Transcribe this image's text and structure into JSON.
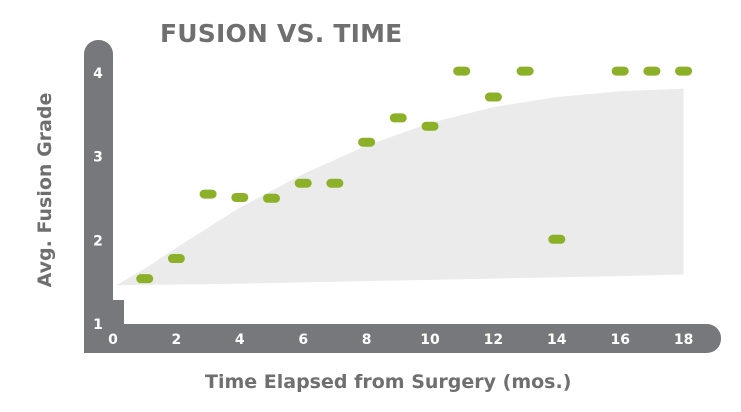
{
  "chart_data": {
    "type": "scatter",
    "title": "FUSION VS. TIME",
    "xlabel": "Time Elapsed from Surgery (mos.)",
    "ylabel": "Avg. Fusion Grade",
    "x_ticks": [
      0,
      2,
      4,
      6,
      8,
      10,
      12,
      14,
      16,
      18
    ],
    "y_ticks": [
      1,
      2,
      3,
      4
    ],
    "xlim": [
      0,
      18.5
    ],
    "ylim": [
      1,
      4
    ],
    "grid": false,
    "legend": "none",
    "colors": {
      "axis": "#77787b",
      "tick_label": "#ffffff",
      "point": "#8cb028",
      "band": "#ebebeb",
      "text": "#6f6f70"
    },
    "points": [
      {
        "x": 1,
        "y": 1.53
      },
      {
        "x": 2,
        "y": 1.77
      },
      {
        "x": 3,
        "y": 2.54
      },
      {
        "x": 4,
        "y": 2.5
      },
      {
        "x": 5,
        "y": 2.49
      },
      {
        "x": 6,
        "y": 2.67
      },
      {
        "x": 7,
        "y": 2.67
      },
      {
        "x": 8,
        "y": 3.16
      },
      {
        "x": 9,
        "y": 3.45
      },
      {
        "x": 10,
        "y": 3.35
      },
      {
        "x": 11,
        "y": 4.01
      },
      {
        "x": 12,
        "y": 3.7
      },
      {
        "x": 13,
        "y": 4.01
      },
      {
        "x": 14,
        "y": 2.0
      },
      {
        "x": 16,
        "y": 4.01
      },
      {
        "x": 17,
        "y": 4.01
      },
      {
        "x": 18,
        "y": 4.01
      }
    ],
    "band": {
      "upper": [
        {
          "x": 0.1,
          "y": 1.45
        },
        {
          "x": 1,
          "y": 1.65
        },
        {
          "x": 2,
          "y": 1.9
        },
        {
          "x": 4,
          "y": 2.38
        },
        {
          "x": 6,
          "y": 2.78
        },
        {
          "x": 8,
          "y": 3.12
        },
        {
          "x": 10,
          "y": 3.39
        },
        {
          "x": 12,
          "y": 3.58
        },
        {
          "x": 14,
          "y": 3.7
        },
        {
          "x": 16,
          "y": 3.77
        },
        {
          "x": 18,
          "y": 3.8
        }
      ],
      "lower": [
        {
          "x": 0.1,
          "y": 1.45
        },
        {
          "x": 4,
          "y": 1.47
        },
        {
          "x": 8,
          "y": 1.5
        },
        {
          "x": 12,
          "y": 1.53
        },
        {
          "x": 16,
          "y": 1.56
        },
        {
          "x": 18,
          "y": 1.58
        }
      ]
    }
  }
}
